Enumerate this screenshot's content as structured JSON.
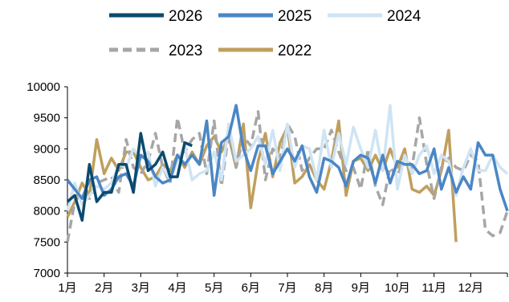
{
  "chart_data": {
    "type": "line",
    "title": "",
    "xlabel": "",
    "ylabel": "",
    "ylim": [
      7000,
      10000
    ],
    "yticks": [
      7000,
      7500,
      8000,
      8500,
      9000,
      9500,
      10000
    ],
    "xlim": [
      1,
      13
    ],
    "x_tick_labels": [
      "1月",
      "2月",
      "3月",
      "4月",
      "5月",
      "6月",
      "7月",
      "8月",
      "9月",
      "10月",
      "11月",
      "12月"
    ],
    "grid": false,
    "legend": "top",
    "x": [
      1,
      1.2,
      1.4,
      1.6,
      1.8,
      2,
      2.2,
      2.4,
      2.6,
      2.8,
      3,
      3.2,
      3.4,
      3.6,
      3.8,
      4,
      4.2,
      4.4,
      4.6,
      4.8,
      5,
      5.2,
      5.4,
      5.6,
      5.8,
      6,
      6.2,
      6.4,
      6.6,
      6.8,
      7,
      7.2,
      7.4,
      7.6,
      7.8,
      8,
      8.2,
      8.4,
      8.6,
      8.8,
      9,
      9.2,
      9.4,
      9.6,
      9.8,
      10,
      10.2,
      10.4,
      10.6,
      10.8,
      11,
      11.2,
      11.4,
      11.6,
      11.8,
      12,
      12.2,
      12.4,
      12.6,
      12.8,
      13
    ],
    "series": [
      {
        "name": "2026",
        "color": "#0b4a6e",
        "dash": "solid",
        "values": [
          8150,
          8250,
          7850,
          8750,
          8150,
          8300,
          8300,
          8750,
          8750,
          8300,
          9250,
          8650,
          8750,
          8950,
          8550,
          8550,
          9100,
          9050,
          null,
          null,
          null,
          null,
          null,
          null,
          null,
          null,
          null,
          null,
          null,
          null,
          null,
          null,
          null,
          null,
          null,
          null,
          null,
          null,
          null,
          null,
          null,
          null,
          null,
          null,
          null,
          null,
          null,
          null,
          null,
          null,
          null,
          null,
          null,
          null,
          null,
          null,
          null,
          null,
          null,
          null,
          null
        ]
      },
      {
        "name": "2025",
        "color": "#4a86c6",
        "dash": "solid",
        "values": [
          8500,
          8350,
          8200,
          8500,
          8550,
          8250,
          8350,
          8550,
          8600,
          8400,
          8900,
          8800,
          8550,
          8450,
          8500,
          8900,
          8750,
          8900,
          8750,
          9450,
          8250,
          9100,
          9200,
          9700,
          9000,
          8650,
          9050,
          9050,
          8600,
          8800,
          9000,
          8800,
          9050,
          8550,
          8300,
          8850,
          8800,
          8700,
          8400,
          8800,
          8900,
          8850,
          8450,
          8900,
          8450,
          8800,
          8750,
          8750,
          8600,
          8650,
          9000,
          8350,
          8700,
          8300,
          8550,
          8350,
          9100,
          8900,
          8900,
          8350,
          8000
        ]
      },
      {
        "name": "2024",
        "color": "#cfe4f4",
        "dash": "solid",
        "values": [
          8000,
          8450,
          8100,
          8250,
          8400,
          8350,
          8450,
          8750,
          8700,
          9000,
          8850,
          8950,
          8400,
          8700,
          8500,
          8800,
          9050,
          8500,
          8600,
          8650,
          8950,
          8500,
          9400,
          8800,
          8900,
          9000,
          9200,
          8750,
          9300,
          8650,
          9400,
          8700,
          9050,
          9000,
          8500,
          9300,
          8700,
          9250,
          8750,
          9350,
          9000,
          8700,
          9300,
          8650,
          9700,
          8350,
          8900,
          8600,
          8900,
          9050,
          8600,
          8900,
          8800,
          8250,
          8700,
          9000,
          8650,
          8650,
          8900,
          8700,
          8600
        ]
      },
      {
        "name": "2023",
        "color": "#a6a6a6",
        "dash": "dashed",
        "values": [
          7500,
          8150,
          8300,
          8200,
          8450,
          8500,
          8550,
          8300,
          9150,
          8700,
          8600,
          8800,
          9250,
          8700,
          8450,
          9500,
          8950,
          9150,
          9250,
          8600,
          9450,
          8400,
          9250,
          8700,
          9200,
          9050,
          9600,
          8500,
          9000,
          8850,
          9400,
          9200,
          8650,
          8850,
          9000,
          9000,
          9300,
          8950,
          8650,
          8700,
          8350,
          9000,
          8400,
          8100,
          8700,
          8550,
          8900,
          8700,
          9500,
          8750,
          8200,
          8700,
          8850,
          8700,
          8650,
          8900,
          8800,
          7700,
          7600,
          7650,
          8000
        ]
      },
      {
        "name": "2022",
        "color": "#bf9f5d",
        "dash": "solid",
        "values": [
          7900,
          8150,
          8450,
          8250,
          9150,
          8600,
          8850,
          8650,
          8950,
          8950,
          8700,
          8500,
          8550,
          8750,
          8650,
          8900,
          8700,
          8950,
          8750,
          9050,
          9200,
          8950,
          9200,
          8700,
          9400,
          8050,
          8800,
          9250,
          8550,
          9100,
          9350,
          8450,
          8550,
          8750,
          8500,
          8350,
          8800,
          9450,
          8250,
          8800,
          8850,
          8650,
          8900,
          8650,
          9000,
          8700,
          9000,
          8350,
          8300,
          8400,
          8250,
          8650,
          9300,
          7500,
          null,
          null,
          null,
          null,
          null,
          null,
          null
        ]
      }
    ]
  }
}
